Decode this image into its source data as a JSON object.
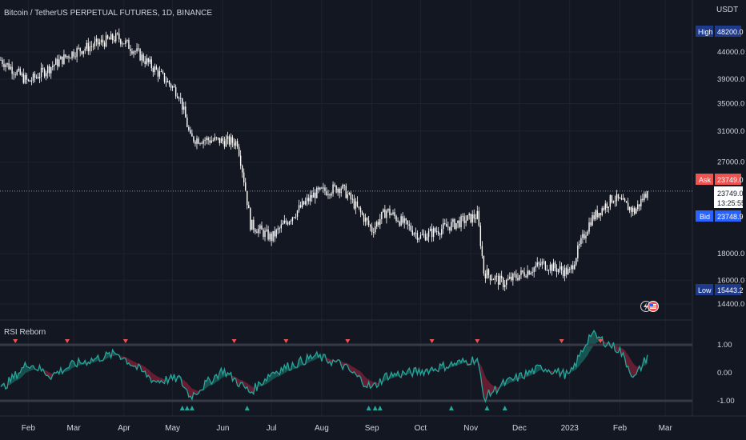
{
  "header": {
    "symbol_title": "Bitcoin / TetherUS PERPETUAL FUTURES, 1D, BINANCE",
    "currency": "USDT"
  },
  "indicator": {
    "name": "RSI Reborn"
  },
  "price_axis": {
    "ticks": [
      "44000.0",
      "39000.0",
      "35000.0",
      "31000.0",
      "27000.0",
      "18000.0",
      "16000.0",
      "14400.0"
    ],
    "tick_values": [
      44000,
      39000,
      35000,
      31000,
      27000,
      18000,
      16000,
      14400
    ]
  },
  "rsi_axis": {
    "ticks": [
      "1.00",
      "0.00",
      "-1.00"
    ],
    "tick_values": [
      1,
      0,
      -1
    ]
  },
  "time_axis": {
    "labels": [
      "Feb",
      "Mar",
      "Apr",
      "May",
      "Jun",
      "Jul",
      "Aug",
      "Sep",
      "Oct",
      "Nov",
      "Dec",
      "2023",
      "Feb",
      "Mar"
    ]
  },
  "badges": {
    "high_label": "High",
    "high_value": "48200.0",
    "ask_label": "Ask",
    "ask_value": "23749.0",
    "last_value": "23749.0",
    "countdown": "13:25:55",
    "bid_label": "Bid",
    "bid_value": "23748.9",
    "low_label": "Low",
    "low_value": "15443.2"
  },
  "colors": {
    "background": "#131722",
    "candle": "#ffffff",
    "rsi_line": "#26a69a",
    "bull_fill": "#1b5e5a",
    "bear_fill": "#7a1f35",
    "ask": "#ef5350",
    "bid": "#2962ff",
    "high_low": "#1e3a8a"
  },
  "chart_data": [
    {
      "type": "candlestick",
      "title": "Bitcoin / TetherUS PERPETUAL FUTURES, 1D, BINANCE",
      "x": [
        "2022-01-15",
        "2022-02-01",
        "2022-03-01",
        "2022-03-28",
        "2022-04-05",
        "2022-05-05",
        "2022-05-12",
        "2022-06-10",
        "2022-06-18",
        "2022-07-01",
        "2022-07-28",
        "2022-08-13",
        "2022-09-01",
        "2022-09-10",
        "2022-10-01",
        "2022-11-05",
        "2022-11-09",
        "2022-11-21",
        "2022-12-15",
        "2023-01-01",
        "2023-01-14",
        "2023-01-28",
        "2023-02-10",
        "2023-02-18"
      ],
      "close": [
        42500,
        38500,
        44000,
        47000,
        45000,
        36500,
        30000,
        29500,
        20500,
        19300,
        23500,
        24200,
        20000,
        21800,
        19400,
        21300,
        16600,
        15800,
        17200,
        16550,
        20900,
        23100,
        21700,
        23749
      ],
      "ylim": [
        13500,
        49500
      ],
      "y_ticks": [
        44000,
        39000,
        35000,
        31000,
        27000,
        18000,
        16000,
        14400
      ],
      "high": 48200.0,
      "low": 15443.2,
      "ask": 23749.0,
      "bid": 23748.9,
      "last": 23749.0,
      "currency": "USDT"
    },
    {
      "type": "line",
      "title": "RSI Reborn",
      "x": [
        "2022-01-15",
        "2022-02-01",
        "2022-02-15",
        "2022-03-01",
        "2022-03-28",
        "2022-04-20",
        "2022-05-05",
        "2022-05-12",
        "2022-06-01",
        "2022-06-18",
        "2022-07-01",
        "2022-07-28",
        "2022-08-13",
        "2022-09-01",
        "2022-09-10",
        "2022-10-01",
        "2022-11-05",
        "2022-11-09",
        "2022-11-21",
        "2022-12-15",
        "2023-01-01",
        "2023-01-14",
        "2023-02-01",
        "2023-02-10",
        "2023-02-18"
      ],
      "values": [
        -0.6,
        0.35,
        -0.1,
        0.3,
        0.7,
        -0.3,
        -0.2,
        -0.85,
        0.1,
        -0.7,
        0.0,
        0.6,
        0.3,
        -0.55,
        -0.1,
        0.05,
        0.5,
        -0.9,
        -0.4,
        0.2,
        -0.1,
        1.4,
        0.8,
        -0.2,
        0.6
      ],
      "ylim": [
        -1.4,
        1.5
      ],
      "y_ticks": [
        1.0,
        0.0,
        -1.0
      ]
    }
  ]
}
